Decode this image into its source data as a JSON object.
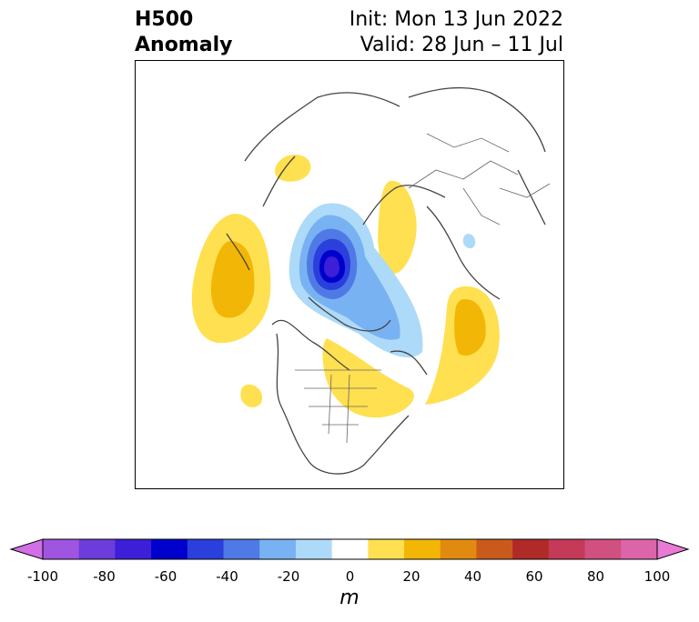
{
  "header": {
    "title_line1": "H500",
    "title_line2": "Anomaly",
    "init_label": "Init: Mon 13 Jun 2022",
    "valid_label": "Valid: 28 Jun – 11 Jul"
  },
  "colorbar": {
    "unit": "m",
    "ticks": [
      "-100",
      "-80",
      "-60",
      "-40",
      "-20",
      "0",
      "20",
      "40",
      "60",
      "80",
      "100"
    ],
    "colors": [
      "#d36fe6",
      "#9f55e0",
      "#6c3ddb",
      "#3c1fd6",
      "#0000cc",
      "#2a3fdb",
      "#4f7ae6",
      "#79b2f2",
      "#addaf8",
      "#ffffff",
      "#ffe050",
      "#f2b606",
      "#e08b10",
      "#c95a1c",
      "#b02a28",
      "#c43a58",
      "#d05080",
      "#dc65aa",
      "#e87ad6"
    ],
    "min": -100,
    "max": 100,
    "step": 10
  }
}
